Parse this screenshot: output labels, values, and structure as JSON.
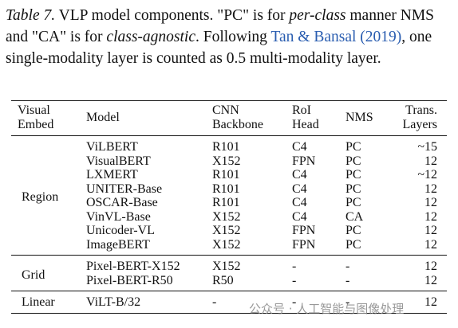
{
  "caption": [
    "Table 7.",
    " VLP model components. \"PC\" is for ",
    "per-class",
    " manner NMS and \"CA\" is for ",
    "class-agnostic",
    ". Following ",
    "Tan & Bansal",
    " ",
    "(2019)",
    ", one single-modality layer is counted as 0.5 multi-modality layer."
  ],
  "table": {
    "header": [
      "Visual Embed",
      "Model",
      "CNN Backbone",
      "RoI Head",
      "NMS",
      "Trans. Layers"
    ],
    "groups": [
      {
        "name": "Region",
        "rows": [
          [
            "ViLBERT",
            "R101",
            "C4",
            "PC",
            "~15"
          ],
          [
            "VisualBERT",
            "X152",
            "FPN",
            "PC",
            "12"
          ],
          [
            "LXMERT",
            "R101",
            "C4",
            "PC",
            "~12"
          ],
          [
            "UNITER-Base",
            "R101",
            "C4",
            "PC",
            "12"
          ],
          [
            "OSCAR-Base",
            "R101",
            "C4",
            "PC",
            "12"
          ],
          [
            "VinVL-Base",
            "X152",
            "C4",
            "CA",
            "12"
          ],
          [
            "Unicoder-VL",
            "X152",
            "FPN",
            "PC",
            "12"
          ],
          [
            "ImageBERT",
            "X152",
            "FPN",
            "PC",
            "12"
          ]
        ]
      },
      {
        "name": "Grid",
        "rows": [
          [
            "Pixel-BERT-X152",
            "X152",
            "-",
            "-",
            "12"
          ],
          [
            "Pixel-BERT-R50",
            "R50",
            "-",
            "-",
            "12"
          ]
        ]
      },
      {
        "name": "Linear",
        "rows": [
          [
            "ViLT-B/32",
            "-",
            "-",
            "-",
            "12"
          ]
        ]
      }
    ]
  },
  "watermark": "公众号 · 人工智能与图像处理"
}
